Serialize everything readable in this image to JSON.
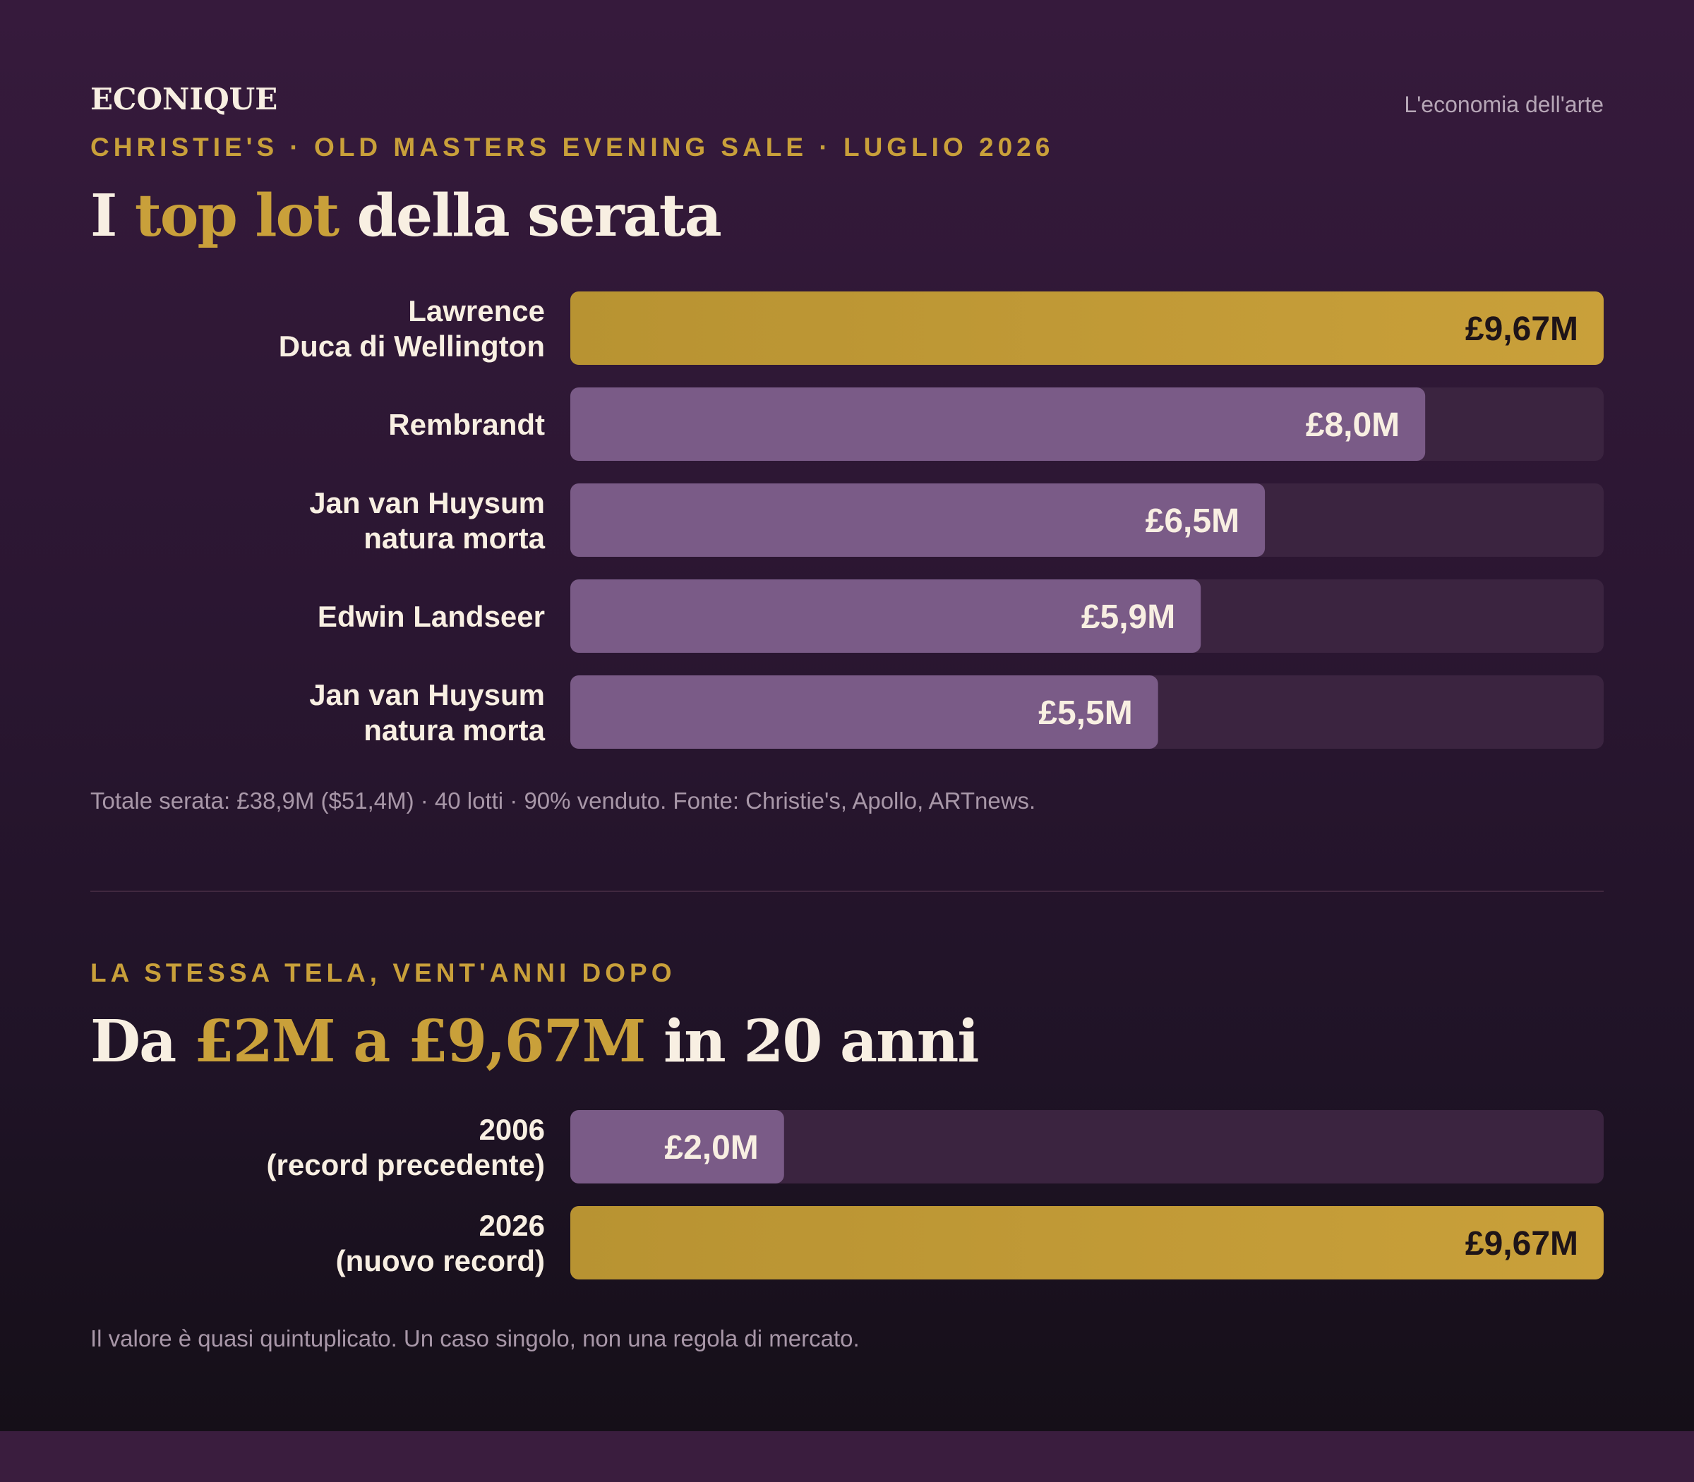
{
  "brand": "ECONIQUE",
  "tagline": "L'economia dell'arte",
  "colors": {
    "gold": "#c9a03a",
    "purple": "#7a5b87",
    "track": "#3b2440",
    "text_dark": "#1e1418",
    "text_light": "#f8efe2"
  },
  "section1": {
    "eyebrow": "CHRISTIE'S · OLD MASTERS EVENING SALE · LUGLIO 2026",
    "title_pre": "I ",
    "title_hl": "top lot",
    "title_post": " della serata",
    "note": "Totale serata: £38,9M ($51,4M) · 40 lotti · 90% venduto. Fonte: Christie's, Apollo, ARTnews."
  },
  "section2": {
    "eyebrow": "LA STESSA TELA, VENT'ANNI DOPO",
    "title_pre": "Da ",
    "title_hl": "£2M a £9,67M",
    "title_post": " in 20 anni",
    "note": "Il valore è quasi quintuplicato. Un caso singolo, non una regola di mercato."
  },
  "chart_data": [
    {
      "type": "bar",
      "orientation": "horizontal",
      "unit": "£M",
      "xlim": [
        0,
        9.67
      ],
      "categories": [
        [
          "Lawrence",
          "Duca di Wellington"
        ],
        [
          "Rembrandt"
        ],
        [
          "Jan van Huysum",
          "natura morta"
        ],
        [
          "Edwin Landseer"
        ],
        [
          "Jan van Huysum",
          "natura morta"
        ]
      ],
      "values": [
        9.67,
        8.0,
        6.5,
        5.9,
        5.5
      ],
      "labels": [
        "£9,67M",
        "£8,0M",
        "£6,5M",
        "£5,9M",
        "£5,5M"
      ],
      "highlight": [
        true,
        false,
        false,
        false,
        false
      ],
      "grid": false
    },
    {
      "type": "bar",
      "orientation": "horizontal",
      "unit": "£M",
      "xlim": [
        0,
        9.67
      ],
      "categories": [
        [
          "2006",
          "(record precedente)"
        ],
        [
          "2026",
          "(nuovo record)"
        ]
      ],
      "values": [
        2.0,
        9.67
      ],
      "labels": [
        "£2,0M",
        "£9,67M"
      ],
      "highlight": [
        false,
        true
      ],
      "grid": false
    }
  ]
}
